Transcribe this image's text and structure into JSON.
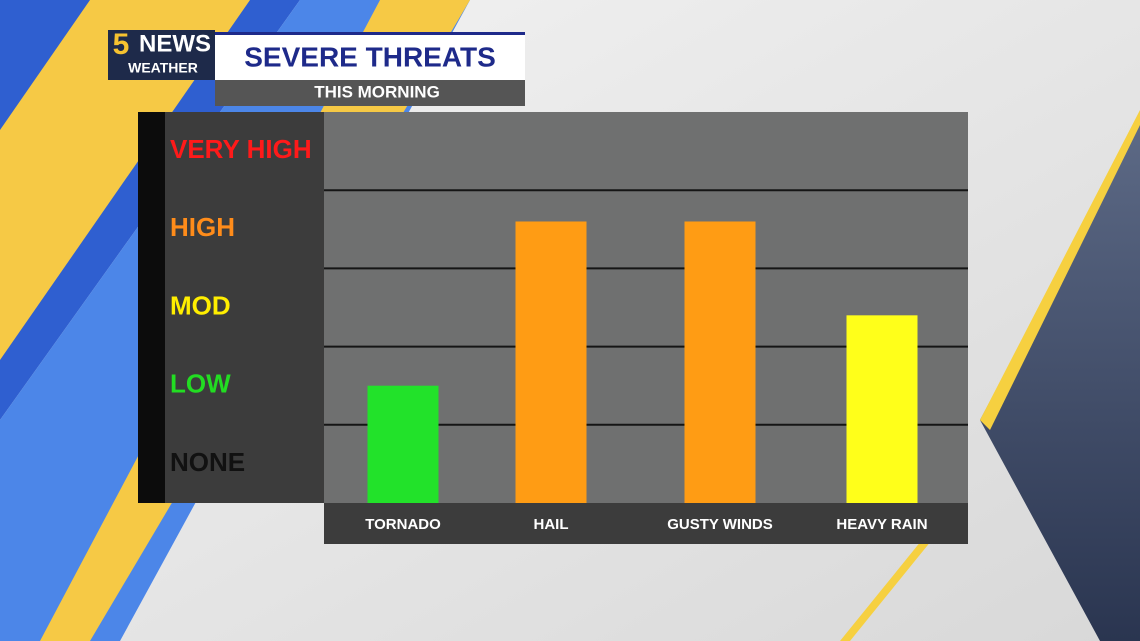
{
  "brand": {
    "logo_number": "5",
    "logo_name": "NEWS",
    "logo_sub": "WEATHER"
  },
  "chart_data": {
    "type": "bar",
    "title": "SEVERE THREATS",
    "subtitle": "THIS MORNING",
    "levels": [
      {
        "label": "NONE",
        "color": "#111111"
      },
      {
        "label": "LOW",
        "color": "#22dd22"
      },
      {
        "label": "MOD",
        "color": "#ffee00"
      },
      {
        "label": "HIGH",
        "color": "#ff8c1a"
      },
      {
        "label": "VERY HIGH",
        "color": "#ff1a1a"
      }
    ],
    "ylim": [
      0,
      5
    ],
    "categories": [
      "TORNADO",
      "HAIL",
      "GUSTY WINDS",
      "HEAVY RAIN"
    ],
    "values": [
      1.5,
      3.6,
      3.6,
      2.4
    ],
    "colors": [
      "#22e22a",
      "#ff9c14",
      "#ff9c14",
      "#ffff1a"
    ],
    "grid": true
  }
}
